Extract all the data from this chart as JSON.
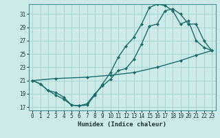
{
  "xlabel": "Humidex (Indice chaleur)",
  "ylabel": "",
  "bg_color": "#cceae8",
  "grid_color": "#aad4d0",
  "line_color": "#1a6b6b",
  "xlim": [
    -0.5,
    23.5
  ],
  "ylim": [
    16.5,
    32.5
  ],
  "xticks": [
    0,
    1,
    2,
    3,
    4,
    5,
    6,
    7,
    8,
    9,
    10,
    11,
    12,
    13,
    14,
    15,
    16,
    17,
    18,
    19,
    20,
    21,
    22,
    23
  ],
  "yticks": [
    17,
    19,
    21,
    23,
    25,
    27,
    29,
    31
  ],
  "curve_upper_x": [
    0,
    1,
    2,
    3,
    4,
    5,
    6,
    7,
    8,
    9,
    10,
    11,
    12,
    13,
    14,
    15,
    16,
    17,
    18,
    19,
    20,
    21,
    22,
    23
  ],
  "curve_upper_y": [
    21.0,
    20.5,
    19.5,
    19.2,
    18.5,
    17.3,
    17.2,
    17.3,
    18.8,
    20.5,
    22.2,
    24.5,
    26.2,
    27.5,
    29.5,
    32.0,
    32.5,
    32.3,
    31.5,
    29.5,
    30.0,
    27.0,
    26.0,
    25.5
  ],
  "curve_lower_x": [
    0,
    1,
    2,
    3,
    4,
    5,
    6,
    7,
    8,
    9,
    10,
    11,
    12,
    13,
    14,
    15,
    16,
    17,
    18,
    19,
    20,
    21,
    22,
    23
  ],
  "curve_lower_y": [
    21.0,
    20.5,
    19.5,
    18.8,
    18.2,
    17.3,
    17.2,
    17.5,
    19.0,
    20.2,
    21.2,
    22.5,
    22.8,
    24.2,
    26.5,
    29.2,
    29.5,
    31.5,
    31.8,
    31.0,
    29.5,
    29.5,
    27.0,
    25.5
  ],
  "curve_straight_x": [
    0,
    3,
    7,
    10,
    13,
    16,
    19,
    21,
    23
  ],
  "curve_straight_y": [
    21.0,
    21.3,
    21.5,
    21.8,
    22.2,
    23.0,
    24.0,
    24.8,
    25.5
  ],
  "markersize": 2.5,
  "linewidth": 1.0
}
